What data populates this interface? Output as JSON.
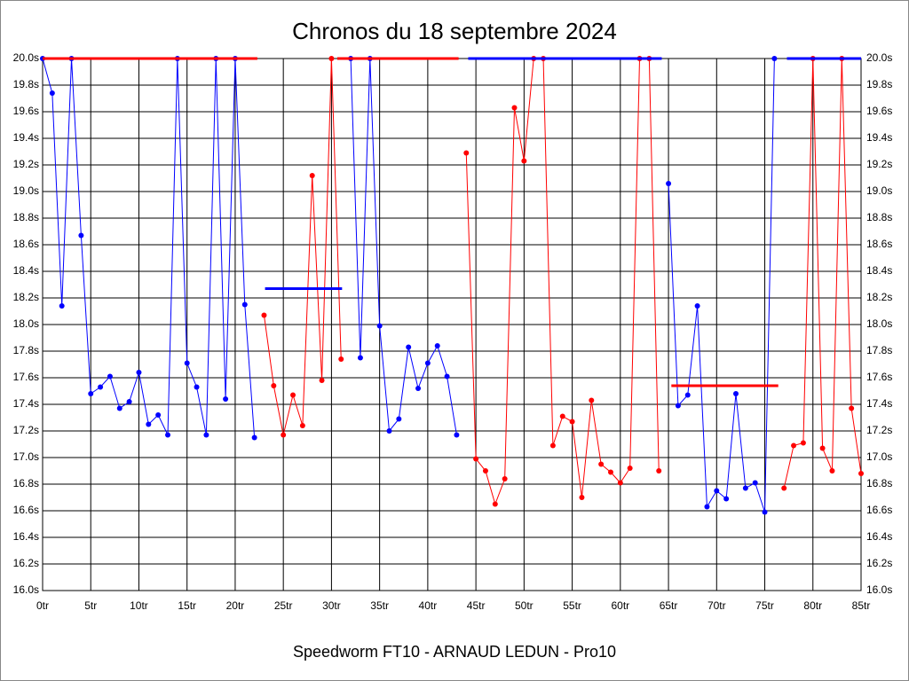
{
  "chart_data": {
    "type": "line",
    "title": "Chronos du 18 septembre 2024",
    "xlabel": "Speedworm FT10 - ARNAUD LEDUN - Pro10",
    "xlim": [
      0,
      85
    ],
    "ylim": [
      16.0,
      20.0
    ],
    "grid": true,
    "xticks": [
      {
        "value": 0,
        "label": "0tr"
      },
      {
        "value": 5,
        "label": "5tr"
      },
      {
        "value": 10,
        "label": "10tr"
      },
      {
        "value": 15,
        "label": "15tr"
      },
      {
        "value": 20,
        "label": "20tr"
      },
      {
        "value": 25,
        "label": "25tr"
      },
      {
        "value": 30,
        "label": "30tr"
      },
      {
        "value": 35,
        "label": "35tr"
      },
      {
        "value": 40,
        "label": "40tr"
      },
      {
        "value": 45,
        "label": "45tr"
      },
      {
        "value": 50,
        "label": "50tr"
      },
      {
        "value": 55,
        "label": "55tr"
      },
      {
        "value": 60,
        "label": "60tr"
      },
      {
        "value": 65,
        "label": "65tr"
      },
      {
        "value": 70,
        "label": "70tr"
      },
      {
        "value": 75,
        "label": "75tr"
      },
      {
        "value": 80,
        "label": "80tr"
      },
      {
        "value": 85,
        "label": "85tr"
      }
    ],
    "yticks": [
      {
        "value": 16.0,
        "label": "16.0s"
      },
      {
        "value": 16.2,
        "label": "16.2s"
      },
      {
        "value": 16.4,
        "label": "16.4s"
      },
      {
        "value": 16.6,
        "label": "16.6s"
      },
      {
        "value": 16.8,
        "label": "16.8s"
      },
      {
        "value": 17.0,
        "label": "17.0s"
      },
      {
        "value": 17.2,
        "label": "17.2s"
      },
      {
        "value": 17.4,
        "label": "17.4s"
      },
      {
        "value": 17.6,
        "label": "17.6s"
      },
      {
        "value": 17.8,
        "label": "17.8s"
      },
      {
        "value": 18.0,
        "label": "18.0s"
      },
      {
        "value": 18.2,
        "label": "18.2s"
      },
      {
        "value": 18.4,
        "label": "18.4s"
      },
      {
        "value": 18.6,
        "label": "18.6s"
      },
      {
        "value": 18.8,
        "label": "18.8s"
      },
      {
        "value": 19.0,
        "label": "19.0s"
      },
      {
        "value": 19.2,
        "label": "19.2s"
      },
      {
        "value": 19.4,
        "label": "19.4s"
      },
      {
        "value": 19.6,
        "label": "19.6s"
      },
      {
        "value": 19.8,
        "label": "19.8s"
      },
      {
        "value": 20.0,
        "label": "20.0s"
      }
    ],
    "series": [
      {
        "color": "#0000ff",
        "x": [
          0,
          1,
          2,
          3,
          4,
          5,
          6,
          7,
          8,
          9,
          10,
          11,
          12,
          13,
          14,
          15,
          16,
          17,
          18,
          19,
          20,
          21,
          22
        ],
        "values": [
          20.0,
          19.74,
          18.14,
          20.0,
          18.67,
          17.48,
          17.53,
          17.61,
          17.37,
          17.42,
          17.64,
          17.25,
          17.32,
          17.17,
          20.0,
          17.71,
          17.53,
          17.17,
          20.0,
          17.44,
          20.0,
          18.15,
          17.15
        ]
      },
      {
        "color": "#ff0000",
        "x": [
          23,
          24,
          25,
          26,
          27,
          28,
          29,
          30,
          31
        ],
        "values": [
          18.07,
          17.54,
          17.17,
          17.47,
          17.24,
          19.12,
          17.58,
          20.0,
          17.74
        ]
      },
      {
        "color": "#0000ff",
        "x": [
          32,
          33,
          34,
          35,
          36,
          37,
          38,
          39,
          40,
          41,
          42,
          43
        ],
        "values": [
          20.0,
          17.75,
          20.0,
          17.99,
          17.2,
          17.29,
          17.83,
          17.52,
          17.71,
          17.84,
          17.61,
          17.17
        ]
      },
      {
        "color": "#ff0000",
        "x": [
          44,
          45,
          46,
          47,
          48,
          49,
          50,
          51,
          52,
          53,
          54,
          55,
          56,
          57,
          58,
          59,
          60,
          61,
          62,
          63,
          64
        ],
        "values": [
          19.29,
          16.99,
          16.9,
          16.65,
          16.84,
          19.63,
          19.23,
          20.0,
          20.0,
          17.09,
          17.31,
          17.27,
          16.7,
          17.43,
          16.95,
          16.89,
          16.81,
          16.92,
          20.0,
          20.0,
          16.9
        ]
      },
      {
        "color": "#0000ff",
        "x": [
          65,
          66,
          67,
          68,
          69,
          70,
          71,
          72,
          73,
          74,
          75,
          76
        ],
        "values": [
          19.06,
          17.39,
          17.47,
          18.14,
          16.63,
          16.75,
          16.69,
          17.48,
          16.77,
          16.81,
          16.59,
          20.0
        ]
      },
      {
        "color": "#ff0000",
        "x": [
          77,
          78,
          79,
          80,
          81,
          82,
          83,
          84,
          85
        ],
        "values": [
          16.77,
          17.09,
          17.11,
          20.0,
          17.07,
          16.9,
          20.0,
          17.37,
          16.88
        ]
      }
    ],
    "reference_lines": [
      {
        "color": "#ff0000",
        "x": [
          0,
          22.3
        ],
        "y": 20.0
      },
      {
        "color": "#0000ff",
        "x": [
          23.1,
          31.1
        ],
        "y": 18.27
      },
      {
        "color": "#ff0000",
        "x": [
          30.6,
          43.2
        ],
        "y": 20.0
      },
      {
        "color": "#0000ff",
        "x": [
          44.2,
          64.3
        ],
        "y": 20.0
      },
      {
        "color": "#ff0000",
        "x": [
          65.3,
          76.4
        ],
        "y": 17.54
      },
      {
        "color": "#0000ff",
        "x": [
          77.3,
          85
        ],
        "y": 20.0
      }
    ]
  }
}
